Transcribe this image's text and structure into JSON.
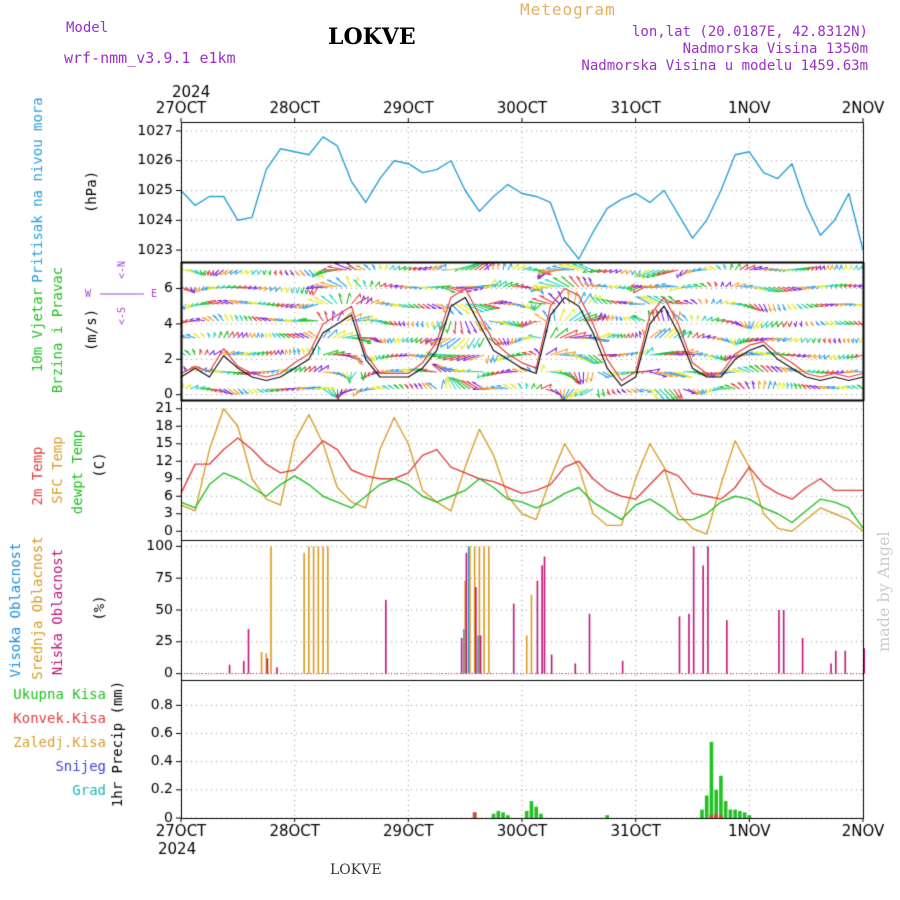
{
  "header": {
    "model_label": "Model",
    "model_name": "wrf-nmm_v3.9.1 e1km",
    "title": "LOKVE",
    "meteogram_label": "Meteogram",
    "location": "lon,lat (20.0187E, 42.8312N)",
    "elevation": "Nadmorska Visina 1350m",
    "model_elevation": "Nadmorska Visina u modelu 1459.63m",
    "footer": "LOKVE",
    "credit": "made by Angel"
  },
  "colors": {
    "pressure": "#2a9fd8",
    "t2m": "#e34040",
    "sfc": "#d9a030",
    "dewpt": "#22c022",
    "high_cloud": "#1f8fe0",
    "mid_cloud": "#d99a20",
    "low_cloud": "#c0157a",
    "precip_total": "#22c022",
    "precip_conv": "#e34040",
    "wind_speed": "#111111",
    "wind_gust": "#e34040",
    "wind_axis_label": "#aa44cc",
    "header_purple": "#9b30c8",
    "meteogram_orange": "#e5b060"
  },
  "time_axis": {
    "year": "2024",
    "labels": [
      "27OCT",
      "28OCT",
      "29OCT",
      "30OCT",
      "31OCT",
      "1NOV",
      "2NOV"
    ],
    "start_hour": 0,
    "end_hour": 144
  },
  "chart_data": [
    {
      "type": "line",
      "id": "pressure",
      "ylabel": [
        "Pritisak na nivou mora",
        "(hPa)"
      ],
      "yticks": [
        1023,
        1024,
        1025,
        1026,
        1027
      ],
      "ylim": [
        1022.6,
        1027.3
      ],
      "grid": true,
      "series": [
        {
          "x": [
            0,
            3,
            6,
            9,
            12,
            15,
            18,
            21,
            24,
            27,
            30,
            33,
            36,
            39,
            42,
            45,
            48,
            51,
            54,
            57,
            60,
            63,
            66,
            69,
            72,
            75,
            78,
            81,
            84,
            87,
            90,
            93,
            96,
            99,
            102,
            105,
            108,
            111,
            114,
            117,
            120,
            123,
            126,
            129,
            132,
            135,
            138,
            141,
            144
          ],
          "values": [
            1025.0,
            1024.5,
            1024.8,
            1024.8,
            1024.0,
            1024.1,
            1025.7,
            1026.4,
            1026.3,
            1026.2,
            1026.8,
            1026.5,
            1025.3,
            1024.6,
            1025.4,
            1026.0,
            1025.9,
            1025.6,
            1025.7,
            1026.0,
            1025.0,
            1024.3,
            1024.8,
            1025.2,
            1024.9,
            1024.8,
            1024.6,
            1023.3,
            1022.7,
            1023.6,
            1024.4,
            1024.7,
            1024.9,
            1024.6,
            1025.0,
            1024.2,
            1023.4,
            1024.0,
            1025.0,
            1026.2,
            1026.3,
            1025.6,
            1025.4,
            1025.9,
            1024.5,
            1023.5,
            1024.0,
            1024.9,
            1023.0
          ]
        }
      ]
    },
    {
      "type": "line",
      "id": "wind",
      "ylabel": [
        "10m Vjetar",
        "Brzina i Pravac",
        "(m/s)"
      ],
      "compass": [
        "N",
        "W",
        "E",
        "S"
      ],
      "yticks": [
        0,
        2,
        4,
        6
      ],
      "ylim": [
        -0.3,
        7.5
      ],
      "grid": true,
      "series": [
        {
          "name": "speed",
          "x": [
            0,
            3,
            6,
            9,
            12,
            15,
            18,
            21,
            24,
            27,
            30,
            33,
            36,
            39,
            42,
            45,
            48,
            51,
            54,
            57,
            60,
            63,
            66,
            69,
            72,
            75,
            78,
            81,
            84,
            87,
            90,
            93,
            96,
            99,
            102,
            105,
            108,
            111,
            114,
            117,
            120,
            123,
            126,
            129,
            132,
            135,
            138,
            141,
            144
          ],
          "values": [
            1.0,
            1.5,
            1.0,
            2.2,
            1.5,
            1.0,
            0.8,
            1.0,
            1.5,
            2.0,
            3.5,
            4.0,
            4.5,
            2.0,
            1.0,
            1.0,
            1.0,
            1.5,
            2.5,
            5.0,
            5.5,
            4.0,
            2.5,
            2.0,
            1.5,
            1.2,
            4.5,
            5.5,
            5.0,
            3.5,
            1.5,
            0.5,
            1.0,
            4.0,
            5.0,
            3.5,
            1.5,
            1.0,
            1.0,
            2.0,
            2.5,
            2.8,
            2.0,
            1.5,
            1.0,
            0.8,
            1.0,
            0.8,
            1.0
          ]
        },
        {
          "name": "gust",
          "x": [
            0,
            3,
            6,
            9,
            12,
            15,
            18,
            21,
            24,
            27,
            30,
            33,
            36,
            39,
            42,
            45,
            48,
            51,
            54,
            57,
            60,
            63,
            66,
            69,
            72,
            75,
            78,
            81,
            84,
            87,
            90,
            93,
            96,
            99,
            102,
            105,
            108,
            111,
            114,
            117,
            120,
            123,
            126,
            129,
            132,
            135,
            138,
            141,
            144
          ],
          "values": [
            1.2,
            1.6,
            1.3,
            2.6,
            1.6,
            1.2,
            1.0,
            1.2,
            1.8,
            2.3,
            4.0,
            4.5,
            5.0,
            2.3,
            1.2,
            1.2,
            1.2,
            1.8,
            3.0,
            5.5,
            6.0,
            4.5,
            3.0,
            2.3,
            1.8,
            1.5,
            5.0,
            6.0,
            5.6,
            4.0,
            2.0,
            0.8,
            1.3,
            4.5,
            5.5,
            4.0,
            1.8,
            1.2,
            1.2,
            2.3,
            2.8,
            3.0,
            2.3,
            1.8,
            1.2,
            1.0,
            1.2,
            1.0,
            1.2
          ]
        }
      ],
      "arrow_colors": [
        "#e8e820",
        "#2ad0c0",
        "#22c022",
        "#e34040",
        "#7a2ae0",
        "#f0a030",
        "#30a0f0"
      ]
    },
    {
      "type": "line",
      "id": "temperature",
      "ylabel": [
        "2m Temp",
        "SFC Temp",
        "dewpt Temp",
        "(C)"
      ],
      "yticks": [
        0,
        3,
        6,
        9,
        12,
        15,
        18,
        21
      ],
      "ylim": [
        -1.5,
        22.5
      ],
      "grid": true,
      "series": [
        {
          "name": "2m Temp",
          "x": [
            0,
            3,
            6,
            9,
            12,
            15,
            18,
            21,
            24,
            27,
            30,
            33,
            36,
            39,
            42,
            45,
            48,
            51,
            54,
            57,
            60,
            63,
            66,
            69,
            72,
            75,
            78,
            81,
            84,
            87,
            90,
            93,
            96,
            99,
            102,
            105,
            108,
            111,
            114,
            117,
            120,
            123,
            126,
            129,
            132,
            135,
            138,
            141,
            144
          ],
          "values": [
            6.5,
            11.5,
            11.5,
            14.0,
            16.0,
            14.0,
            11.5,
            10.0,
            10.5,
            13.0,
            15.5,
            14.0,
            10.5,
            9.5,
            9.0,
            9.0,
            10.0,
            13.0,
            14.0,
            11.0,
            10.0,
            9.0,
            8.5,
            7.5,
            6.5,
            7.0,
            8.0,
            11.0,
            12.0,
            9.0,
            7.0,
            6.0,
            5.5,
            8.0,
            10.5,
            9.5,
            6.5,
            6.0,
            5.5,
            7.5,
            11.0,
            8.0,
            6.5,
            5.5,
            7.5,
            9.0,
            7.0,
            7.0,
            7.0
          ]
        },
        {
          "name": "SFC Temp",
          "x": [
            0,
            3,
            6,
            9,
            12,
            15,
            18,
            21,
            24,
            27,
            30,
            33,
            36,
            39,
            42,
            45,
            48,
            51,
            54,
            57,
            60,
            63,
            66,
            69,
            72,
            75,
            78,
            81,
            84,
            87,
            90,
            93,
            96,
            99,
            102,
            105,
            108,
            111,
            114,
            117,
            120,
            123,
            126,
            129,
            132,
            135,
            138,
            141,
            144
          ],
          "values": [
            4.5,
            3.5,
            14.0,
            21.0,
            18.0,
            9.0,
            5.5,
            4.5,
            15.5,
            20.0,
            15.0,
            7.5,
            5.0,
            4.0,
            14.0,
            19.5,
            15.0,
            7.0,
            5.0,
            3.5,
            11.0,
            17.5,
            13.0,
            6.0,
            3.0,
            2.0,
            9.0,
            15.0,
            11.0,
            3.0,
            1.0,
            1.0,
            9.0,
            15.0,
            11.0,
            3.0,
            0.5,
            -0.5,
            8.0,
            15.5,
            11.0,
            3.0,
            0.5,
            0.0,
            2.0,
            4.0,
            3.0,
            2.0,
            0.0
          ]
        },
        {
          "name": "dewpt Temp",
          "x": [
            0,
            3,
            6,
            9,
            12,
            15,
            18,
            21,
            24,
            27,
            30,
            33,
            36,
            39,
            42,
            45,
            48,
            51,
            54,
            57,
            60,
            63,
            66,
            69,
            72,
            75,
            78,
            81,
            84,
            87,
            90,
            93,
            96,
            99,
            102,
            105,
            108,
            111,
            114,
            117,
            120,
            123,
            126,
            129,
            132,
            135,
            138,
            141,
            144
          ],
          "values": [
            5.0,
            4.0,
            8.0,
            10.0,
            9.0,
            7.5,
            6.0,
            8.0,
            9.5,
            8.0,
            6.0,
            5.0,
            4.0,
            6.0,
            8.0,
            9.0,
            8.0,
            6.0,
            5.0,
            6.0,
            7.0,
            9.0,
            7.5,
            5.5,
            5.0,
            4.0,
            5.0,
            6.5,
            7.5,
            5.0,
            3.5,
            2.0,
            4.5,
            5.5,
            4.0,
            2.0,
            2.0,
            3.0,
            5.0,
            6.0,
            5.5,
            4.0,
            3.0,
            1.5,
            3.5,
            5.5,
            5.0,
            4.0,
            0.5
          ]
        }
      ]
    },
    {
      "type": "bar",
      "id": "cloud",
      "ylabel": [
        "Visoka Oblacnost",
        "Srednja Oblacnost",
        "Niska Oblacnost",
        "(%)"
      ],
      "yticks": [
        0,
        25,
        50,
        75,
        100
      ],
      "ylim": [
        -5,
        105
      ],
      "grid": true,
      "series": [
        {
          "name": "Visoka Oblacnost",
          "x": [
            60,
            61,
            63
          ],
          "values": [
            35,
            100,
            30
          ]
        },
        {
          "name": "Srednja Oblacnost",
          "x": [
            17,
            18,
            19,
            26,
            27,
            28,
            29,
            30,
            31,
            60,
            61,
            62,
            63,
            64,
            65,
            73,
            74
          ],
          "values": [
            17,
            16,
            100,
            95,
            100,
            100,
            100,
            100,
            100,
            73,
            100,
            100,
            100,
            100,
            100,
            30,
            62
          ]
        },
        {
          "name": "Niska Oblacnost",
          "x": [
            10,
            13,
            14,
            18,
            20,
            43,
            59,
            60,
            62,
            63,
            70,
            75,
            76,
            76.5,
            78,
            83,
            86,
            93,
            105,
            107,
            108,
            110,
            111,
            115,
            126,
            127,
            131,
            137,
            138,
            140,
            144
          ],
          "values": [
            7,
            10,
            35,
            12,
            5,
            58,
            28,
            95,
            68,
            30,
            55,
            73,
            85,
            92,
            15,
            8,
            47,
            10,
            45,
            47,
            100,
            85,
            100,
            42,
            50,
            50,
            28,
            8,
            18,
            18,
            20
          ]
        }
      ]
    },
    {
      "type": "bar",
      "id": "precip",
      "ylabel": [
        "1hr Precip",
        "(mm)"
      ],
      "legend": [
        "Ukupna Kisa",
        "Konvek.Kisa",
        "Zaledj.Kisa",
        "Snijeg",
        "Grad"
      ],
      "yticks": [
        0,
        0.2,
        0.4,
        0.6,
        0.8
      ],
      "ylim": [
        0,
        0.98
      ],
      "grid": true,
      "series": [
        {
          "name": "Ukupna Kisa",
          "x": [
            62,
            66,
            67,
            68,
            69,
            73,
            74,
            75,
            76,
            90,
            110,
            111,
            112,
            113,
            114,
            115,
            116,
            117,
            118,
            119,
            120
          ],
          "values": [
            0.04,
            0.03,
            0.05,
            0.04,
            0.02,
            0.05,
            0.12,
            0.08,
            0.03,
            0.02,
            0.06,
            0.16,
            0.54,
            0.2,
            0.3,
            0.12,
            0.06,
            0.06,
            0.05,
            0.04,
            0.02
          ]
        },
        {
          "name": "Konvek.Kisa",
          "x": [
            62,
            112,
            113,
            114
          ],
          "values": [
            0.04,
            0.02,
            0.03,
            0.02
          ]
        }
      ]
    }
  ]
}
